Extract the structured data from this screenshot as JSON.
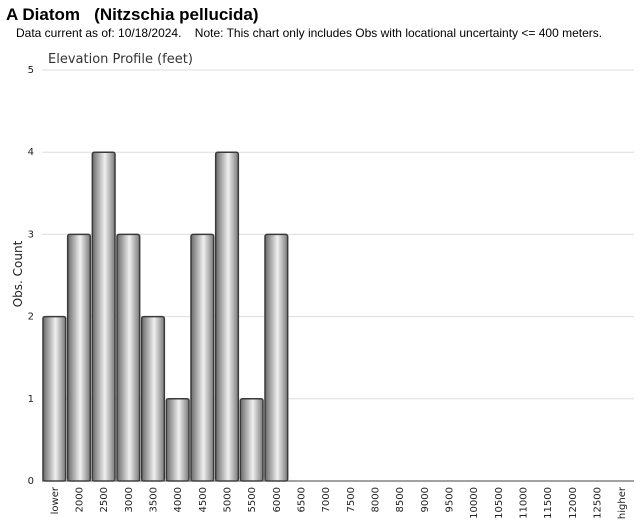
{
  "header": {
    "species": "A Diatom   (Nitzschia pellucida)",
    "note": "Data current as of: 10/18/2024.    Note: This chart only includes Obs with locational uncertainty <= 400 meters."
  },
  "chart_data": {
    "type": "bar",
    "title": "Elevation Profile (feet)",
    "xlabel": "",
    "ylabel": "Obs. Count",
    "ylim": [
      0,
      5
    ],
    "yticks": [
      0,
      1,
      2,
      3,
      4,
      5
    ],
    "grid": true,
    "categories": [
      "lower",
      "2000",
      "2500",
      "3000",
      "3500",
      "4000",
      "4500",
      "5000",
      "5500",
      "6000",
      "6500",
      "7000",
      "7500",
      "8000",
      "8500",
      "9000",
      "9500",
      "10000",
      "10500",
      "11000",
      "11500",
      "12000",
      "12500",
      "higher"
    ],
    "values": [
      2,
      3,
      4,
      3,
      2,
      1,
      3,
      4,
      1,
      3,
      0,
      0,
      0,
      0,
      0,
      0,
      0,
      0,
      0,
      0,
      0,
      0,
      0,
      0
    ],
    "colors": {
      "bar_dark": "#5a5a5a",
      "bar_light": "#f2f2f2",
      "bar_edge": "#3a3a3a",
      "grid": "#dddddd"
    }
  }
}
